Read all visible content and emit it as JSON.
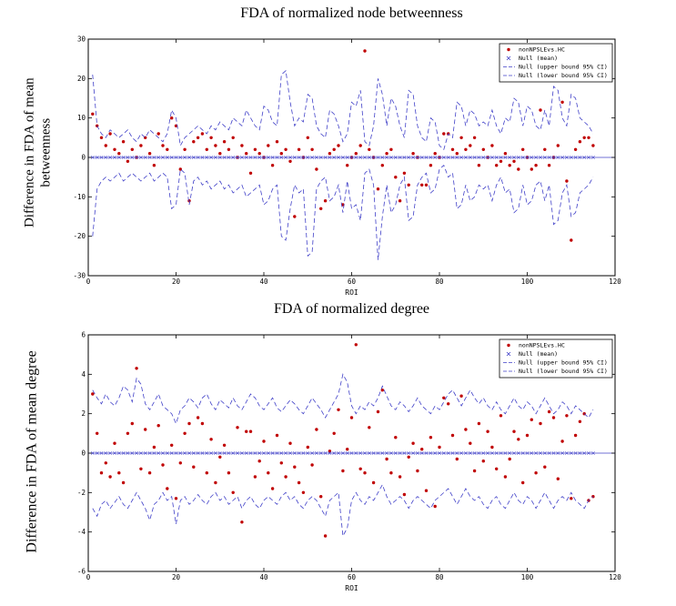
{
  "chart_data": [
    {
      "type": "scatter",
      "title": "FDA of normalized node betweenness",
      "xlabel": "ROI",
      "ylabel": "Difference in FDA of mean betweenness",
      "ylabel_lines": [
        "Difference in FDA of mean",
        "betweenness"
      ],
      "xlim": [
        0,
        120
      ],
      "ylim": [
        -30,
        30
      ],
      "xticks": [
        0,
        20,
        40,
        60,
        80,
        100,
        120
      ],
      "yticks": [
        -30,
        -20,
        -10,
        0,
        10,
        20,
        30
      ],
      "grid": false,
      "legend_position": "top-right",
      "series": [
        {
          "name": "nonNPSLEvs.HC",
          "kind": "scatter",
          "marker": "dot",
          "color": "#c00000",
          "x_start": 1,
          "values": [
            11,
            8,
            5,
            3,
            6,
            2,
            1,
            4,
            -1,
            2,
            0,
            3,
            5,
            1,
            -2,
            6,
            3,
            2,
            10,
            8,
            -3,
            2,
            -11,
            4,
            5,
            6,
            2,
            5,
            3,
            1,
            4,
            2,
            5,
            0,
            3,
            1,
            -4,
            2,
            1,
            0,
            3,
            -2,
            4,
            1,
            2,
            -1,
            -15,
            2,
            0,
            5,
            2,
            -3,
            -13,
            -11,
            1,
            2,
            3,
            -12,
            -2,
            0,
            1,
            3,
            27,
            2,
            0,
            -8,
            -2,
            1,
            2,
            -5,
            -11,
            -4,
            -7,
            1,
            0,
            -7,
            -7,
            -2,
            1,
            0,
            6,
            6,
            2,
            1,
            5,
            2,
            3,
            5,
            -2,
            2,
            0,
            3,
            -2,
            -1,
            1,
            -2,
            -1,
            -3,
            2,
            0,
            -3,
            -2,
            12,
            2,
            -2,
            0,
            3,
            14,
            -6,
            -21,
            2,
            4,
            5,
            5,
            3
          ]
        },
        {
          "name": "Null (mean)",
          "kind": "mean",
          "marker": "x",
          "color": "#4040c8",
          "constant": 0
        },
        {
          "name": "Null (upper bound 95% CI)",
          "kind": "dashed",
          "color": "#4040c8",
          "x_start": 1,
          "values": [
            21,
            8,
            6,
            5,
            7,
            6,
            5,
            6,
            7,
            5,
            4,
            6,
            5,
            7,
            6,
            5,
            4,
            6,
            12,
            10,
            3,
            5,
            6,
            7,
            8,
            7,
            6,
            8,
            7,
            9,
            8,
            7,
            10,
            9,
            8,
            12,
            10,
            8,
            7,
            13,
            12,
            9,
            8,
            21,
            22,
            14,
            8,
            10,
            9,
            16,
            15,
            8,
            6,
            5,
            12,
            11,
            8,
            4,
            6,
            14,
            13,
            17,
            4,
            3,
            8,
            20,
            16,
            8,
            15,
            13,
            8,
            5,
            17,
            16,
            8,
            5,
            4,
            10,
            9,
            3,
            2,
            6,
            5,
            14,
            13,
            8,
            12,
            11,
            8,
            9,
            8,
            12,
            8,
            6,
            10,
            9,
            15,
            14,
            8,
            13,
            12,
            8,
            7,
            12,
            8,
            18,
            17,
            10,
            8,
            16,
            15,
            10,
            9,
            8,
            6
          ]
        },
        {
          "name": "Null (lower bound 95% CI)",
          "kind": "dashed",
          "color": "#4040c8",
          "x_start": 1,
          "values": [
            -20,
            -8,
            -6,
            -5,
            -6,
            -5,
            -4,
            -6,
            -5,
            -4,
            -5,
            -6,
            -5,
            -4,
            -6,
            -5,
            -4,
            -5,
            -13,
            -12,
            -3,
            -4,
            -12,
            -6,
            -5,
            -7,
            -6,
            -8,
            -7,
            -6,
            -8,
            -7,
            -9,
            -8,
            -7,
            -10,
            -9,
            -8,
            -7,
            -12,
            -11,
            -8,
            -7,
            -20,
            -21,
            -13,
            -7,
            -9,
            -8,
            -25,
            -24,
            -8,
            -6,
            -5,
            -11,
            -10,
            -7,
            -14,
            -6,
            -13,
            -12,
            -16,
            -4,
            -3,
            -7,
            -26,
            -15,
            -7,
            -14,
            -12,
            -7,
            -5,
            -16,
            -15,
            -7,
            -5,
            -4,
            -9,
            -8,
            -3,
            -2,
            -5,
            -4,
            -13,
            -12,
            -7,
            -11,
            -10,
            -7,
            -8,
            -7,
            -11,
            -7,
            -5,
            -9,
            -8,
            -14,
            -13,
            -7,
            -12,
            -11,
            -7,
            -6,
            -11,
            -7,
            -17,
            -16,
            -9,
            -7,
            -15,
            -14,
            -9,
            -8,
            -7,
            -5
          ]
        }
      ]
    },
    {
      "type": "scatter",
      "title": "FDA of normalized degree",
      "xlabel": "ROI",
      "ylabel": "Difference in FDA of mean degree",
      "ylabel_lines": [
        "Difference in FDA of mean degree"
      ],
      "xlim": [
        0,
        120
      ],
      "ylim": [
        -6,
        6
      ],
      "xticks": [
        0,
        20,
        40,
        60,
        80,
        100,
        120
      ],
      "yticks": [
        -6,
        -4,
        -2,
        0,
        2,
        4,
        6
      ],
      "grid": false,
      "legend_position": "top-right",
      "series": [
        {
          "name": "nonNPSLEvs.HC",
          "kind": "scatter",
          "marker": "dot",
          "color": "#c00000",
          "x_start": 1,
          "values": [
            3.0,
            1.0,
            -1.0,
            -0.5,
            -1.2,
            0.5,
            -1.0,
            -1.5,
            1.0,
            1.5,
            4.3,
            -0.8,
            1.2,
            -1.0,
            0.3,
            1.4,
            -0.6,
            -1.8,
            0.4,
            -2.3,
            -0.5,
            1.0,
            1.5,
            -0.7,
            1.8,
            1.5,
            -1.0,
            0.7,
            -1.5,
            -0.2,
            0.4,
            -1.0,
            -2.0,
            1.3,
            -3.5,
            1.1,
            1.1,
            -1.2,
            -0.4,
            0.6,
            -1.0,
            -1.8,
            0.9,
            -0.5,
            -1.2,
            0.5,
            -0.7,
            -1.5,
            -2.0,
            0.3,
            -0.6,
            1.2,
            -2.2,
            -4.2,
            0.1,
            1.0,
            2.2,
            -0.9,
            0.2,
            1.8,
            5.5,
            -0.8,
            -1.0,
            1.3,
            -1.5,
            2.1,
            3.2,
            -0.3,
            -1.0,
            0.8,
            -1.2,
            -2.1,
            -0.2,
            0.5,
            -0.9,
            0.2,
            -1.9,
            0.8,
            -2.7,
            0.3,
            2.8,
            2.5,
            0.9,
            -0.3,
            2.9,
            1.2,
            0.5,
            -0.9,
            1.5,
            -0.4,
            1.1,
            0.3,
            -0.8,
            1.9,
            -1.2,
            -0.3,
            1.1,
            0.7,
            -1.5,
            0.9,
            1.7,
            -1.0,
            1.5,
            -0.7,
            2.1,
            1.8,
            -1.3,
            0.6,
            1.9,
            -2.3,
            0.9,
            1.6,
            2.0,
            -2.4,
            -2.2
          ]
        },
        {
          "name": "Null (mean)",
          "kind": "mean",
          "marker": "x",
          "color": "#4040c8",
          "constant": 0
        },
        {
          "name": "Null (upper bound 95% CI)",
          "kind": "dashed",
          "color": "#4040c8",
          "x_start": 1,
          "values": [
            3.2,
            2.8,
            2.5,
            3.0,
            2.6,
            2.4,
            2.8,
            3.4,
            3.2,
            2.6,
            3.8,
            3.5,
            2.5,
            2.2,
            2.6,
            3.0,
            2.4,
            2.2,
            2.0,
            1.5,
            2.2,
            2.4,
            2.8,
            2.6,
            2.3,
            2.8,
            3.0,
            2.5,
            2.2,
            2.7,
            2.5,
            2.3,
            2.8,
            2.4,
            2.2,
            2.6,
            3.0,
            2.8,
            2.4,
            2.2,
            2.5,
            2.8,
            2.3,
            2.1,
            2.4,
            2.7,
            2.5,
            2.2,
            2.0,
            2.4,
            2.8,
            2.5,
            2.2,
            1.8,
            2.2,
            2.6,
            3.0,
            4.0,
            3.6,
            2.4,
            2.0,
            2.4,
            2.2,
            2.6,
            2.4,
            2.8,
            3.4,
            2.9,
            2.4,
            2.2,
            2.6,
            2.4,
            2.1,
            2.4,
            2.8,
            2.4,
            2.2,
            2.0,
            2.4,
            2.2,
            2.6,
            3.0,
            3.2,
            2.8,
            2.4,
            2.8,
            3.2,
            2.8,
            2.5,
            2.8,
            2.4,
            2.2,
            2.6,
            2.2,
            2.0,
            2.4,
            2.8,
            2.4,
            2.2,
            2.6,
            2.4,
            2.0,
            2.4,
            2.8,
            2.4,
            2.0,
            2.2,
            2.6,
            2.4,
            2.0,
            2.4,
            2.2,
            2.0,
            1.8,
            2.2
          ]
        },
        {
          "name": "Null (lower bound 95% CI)",
          "kind": "dashed",
          "color": "#4040c8",
          "x_start": 1,
          "values": [
            -2.8,
            -3.2,
            -2.6,
            -2.4,
            -2.8,
            -2.5,
            -2.2,
            -2.6,
            -2.8,
            -2.4,
            -2.0,
            -2.4,
            -2.8,
            -3.4,
            -2.6,
            -2.4,
            -2.0,
            -2.4,
            -2.2,
            -3.6,
            -2.4,
            -2.2,
            -2.6,
            -2.4,
            -2.1,
            -2.4,
            -2.6,
            -2.2,
            -2.0,
            -2.4,
            -2.2,
            -2.6,
            -2.4,
            -2.2,
            -2.8,
            -2.4,
            -2.2,
            -2.6,
            -2.8,
            -2.4,
            -2.2,
            -2.4,
            -2.6,
            -2.2,
            -2.0,
            -2.4,
            -2.2,
            -2.6,
            -2.8,
            -2.4,
            -2.2,
            -2.4,
            -2.8,
            -3.2,
            -2.4,
            -2.2,
            -2.0,
            -4.2,
            -3.8,
            -2.4,
            -2.0,
            -2.4,
            -2.6,
            -2.2,
            -2.4,
            -2.0,
            -1.6,
            -2.2,
            -2.6,
            -2.4,
            -2.2,
            -2.4,
            -2.8,
            -2.4,
            -2.2,
            -2.4,
            -2.6,
            -2.8,
            -2.4,
            -2.2,
            -2.0,
            -1.8,
            -2.2,
            -2.6,
            -2.2,
            -1.8,
            -2.2,
            -2.4,
            -2.2,
            -2.6,
            -2.8,
            -2.4,
            -2.2,
            -2.6,
            -2.8,
            -2.4,
            -2.0,
            -2.4,
            -2.6,
            -2.2,
            -2.4,
            -2.8,
            -2.4,
            -2.0,
            -2.4,
            -2.8,
            -2.4,
            -2.2,
            -2.4,
            -2.0,
            -2.4,
            -2.6,
            -2.8,
            -2.4,
            -2.2
          ]
        }
      ]
    }
  ]
}
